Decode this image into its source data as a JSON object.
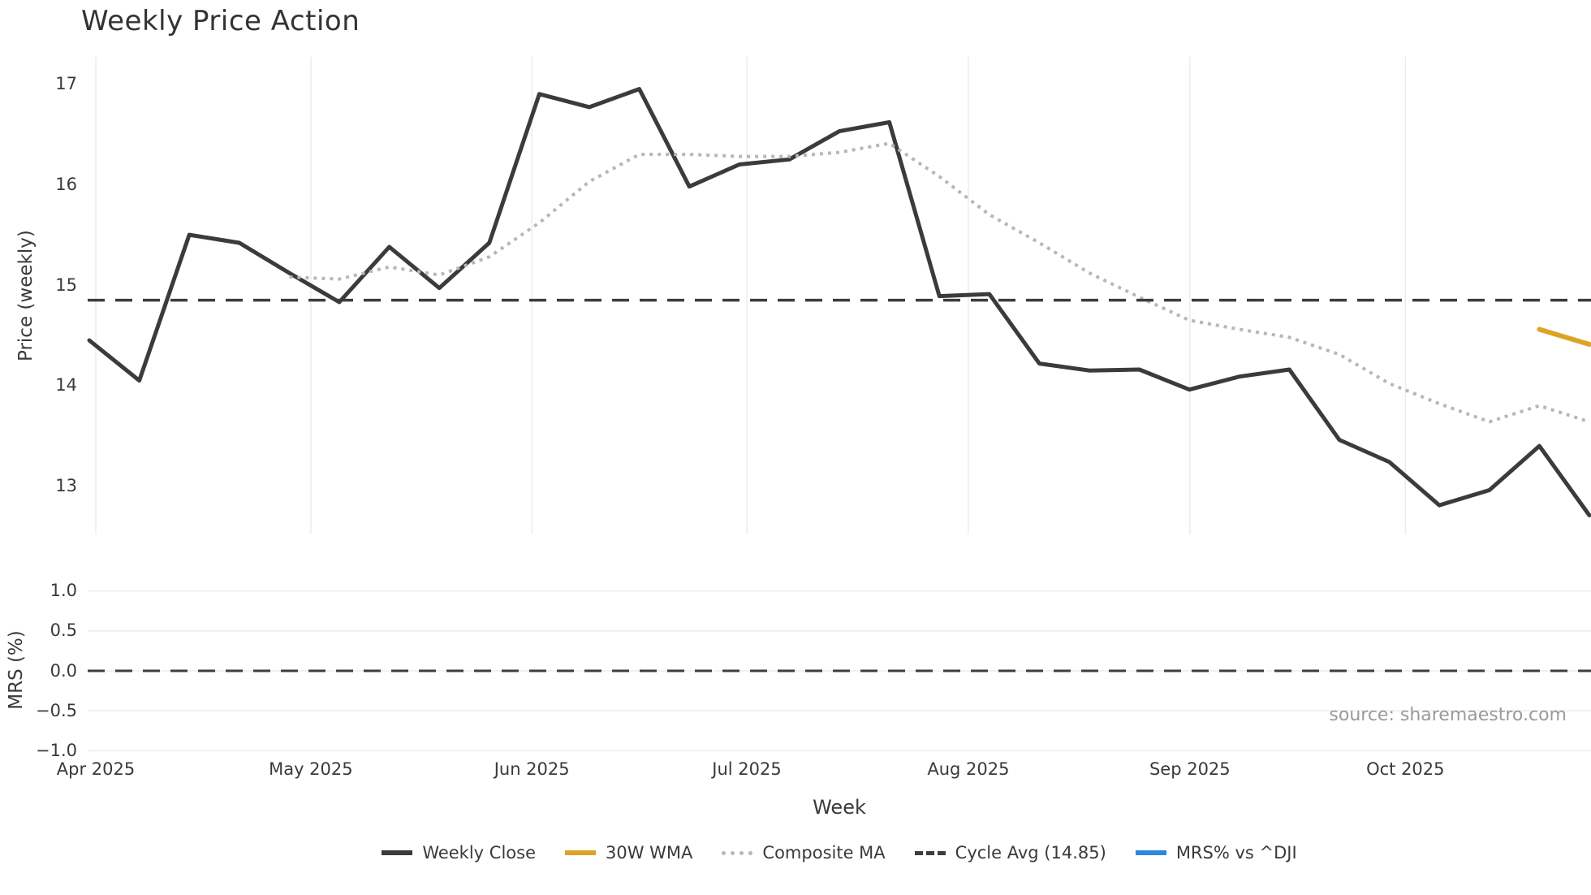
{
  "source_note": "source: sharemaestro.com",
  "colors": {
    "weekly_close": "#3b3b3b",
    "wma_30w": "#DCA427",
    "composite_ma": "#b7b7bb",
    "cycle_avg": "#3d3d3d",
    "mrs": "#2E86DE",
    "grid": "#ebebf2",
    "tick_label": "#3a3a3a",
    "source": "#9a9a9a"
  },
  "chart_data": {
    "type": "line",
    "title": "Weekly Price Action",
    "xlabel": "Week",
    "x_unit": "week_index (weekly closes, Apr 2025 - Oct 2025)",
    "x_ticks": [
      {
        "label": "Apr 2025",
        "week": 0.13
      },
      {
        "label": "May 2025",
        "week": 4.43
      },
      {
        "label": "Jun 2025",
        "week": 8.85
      },
      {
        "label": "Jul 2025",
        "week": 13.15
      },
      {
        "label": "Aug 2025",
        "week": 17.58
      },
      {
        "label": "Sep 2025",
        "week": 22.01
      },
      {
        "label": "Oct 2025",
        "week": 26.32
      }
    ],
    "price_panel": {
      "ylabel": "Price (weekly)",
      "ylim": [
        12.52,
        17.27
      ],
      "yticks": [
        13,
        14,
        15,
        16,
        17
      ],
      "grid": "vertical-only",
      "series": [
        {
          "name": "Weekly Close",
          "style": "solid",
          "color_key": "weekly_close",
          "width": 5,
          "start_week": 0,
          "values": [
            14.45,
            14.05,
            15.5,
            15.42,
            15.12,
            14.83,
            15.38,
            14.97,
            15.42,
            16.9,
            16.77,
            16.95,
            15.98,
            16.2,
            16.25,
            16.53,
            16.62,
            14.89,
            14.91,
            14.22,
            14.15,
            14.16,
            13.96,
            14.09,
            14.16,
            13.46,
            13.24,
            12.81,
            12.96,
            13.4,
            12.71
          ]
        },
        {
          "name": "30W WMA",
          "style": "solid",
          "color_key": "wma_30w",
          "width": 6,
          "start_week": 29,
          "values": [
            14.56,
            14.41
          ]
        },
        {
          "name": "Composite MA",
          "style": "dotted",
          "color_key": "composite_ma",
          "width": 4,
          "start_week": 4,
          "values": [
            15.08,
            15.06,
            15.18,
            15.1,
            15.28,
            15.62,
            16.03,
            16.3,
            16.3,
            16.28,
            16.28,
            16.32,
            16.41,
            16.08,
            15.7,
            15.42,
            15.12,
            14.88,
            14.65,
            14.56,
            14.48,
            14.31,
            14.02,
            13.82,
            13.64,
            13.8,
            13.64
          ]
        },
        {
          "name": "Cycle Avg",
          "style": "dashed",
          "color_key": "cycle_avg",
          "width": 3.5,
          "constant": 14.85
        }
      ]
    },
    "mrs_panel": {
      "ylabel": "MRS (%)",
      "ylim": [
        -1.2,
        1.2
      ],
      "yticks": [
        1.0,
        0.5,
        0.0,
        -0.5,
        -1.0
      ],
      "zero_line": 0.0,
      "grid": "horizontal-only",
      "series": [
        {
          "name": "MRS% vs ^DJI",
          "style": "solid",
          "color_key": "mrs",
          "width": 4,
          "start_week": 0,
          "values": []
        }
      ]
    },
    "legend": [
      {
        "label": "Weekly Close",
        "style": "solid",
        "color_key": "weekly_close"
      },
      {
        "label": "30W WMA",
        "style": "solid",
        "color_key": "wma_30w"
      },
      {
        "label": "Composite MA",
        "style": "dotted",
        "color_key": "composite_ma"
      },
      {
        "label": "Cycle Avg (14.85)",
        "style": "dashed",
        "color_key": "cycle_avg"
      },
      {
        "label": "MRS% vs ^DJI",
        "style": "solid",
        "color_key": "mrs"
      }
    ]
  }
}
